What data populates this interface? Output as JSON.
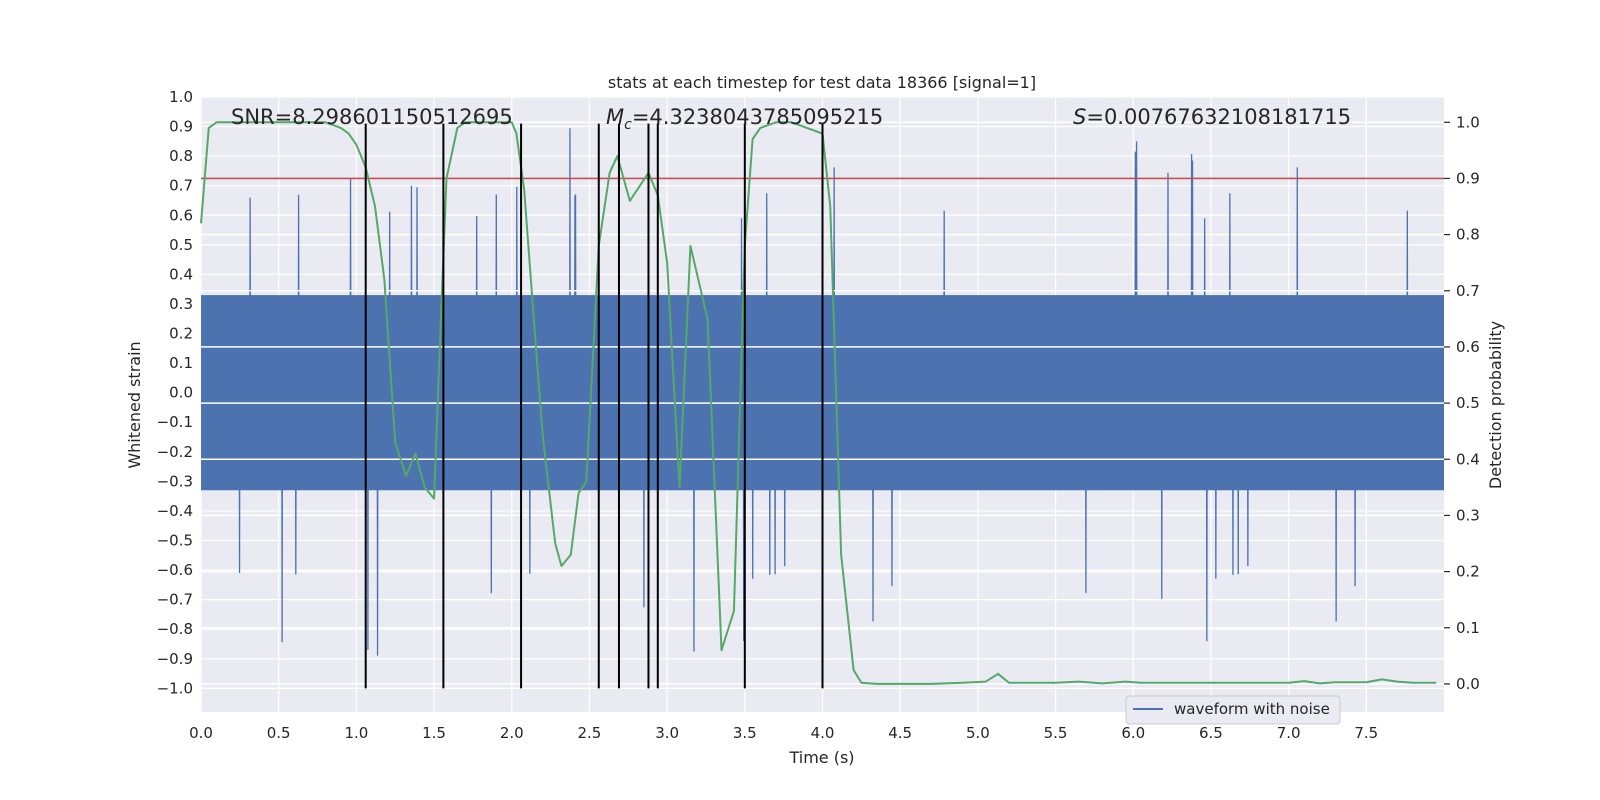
{
  "chart_data": {
    "type": "line",
    "title": "stats at each timestep for test data 18366 [signal=1]",
    "xlabel": "Time (s)",
    "ylabel_left": "Whitened strain",
    "ylabel_right": "Detection probability",
    "xlim": [
      0.0,
      8.0
    ],
    "ylim_left": [
      -1.08,
      1.0
    ],
    "ylim_right": [
      -0.05,
      1.045
    ],
    "x_ticks": [
      "0.0",
      "0.5",
      "1.0",
      "1.5",
      "2.0",
      "2.5",
      "3.0",
      "3.5",
      "4.0",
      "4.5",
      "5.0",
      "5.5",
      "6.0",
      "6.5",
      "7.0",
      "7.5"
    ],
    "y_left_ticks": [
      "1.0",
      "0.9",
      "0.8",
      "0.7",
      "0.6",
      "0.5",
      "0.4",
      "0.3",
      "0.2",
      "0.1",
      "0.0",
      "−0.1",
      "−0.2",
      "−0.3",
      "−0.4",
      "−0.5",
      "−0.6",
      "−0.7",
      "−0.8",
      "−0.9",
      "−1.0"
    ],
    "y_right_ticks": [
      "1.0",
      "0.9",
      "0.8",
      "0.7",
      "0.6",
      "0.5",
      "0.4",
      "0.3",
      "0.2",
      "0.1",
      "0.0"
    ],
    "grid": true,
    "legend_position": "bottom-right",
    "annotations": {
      "snr": "SNR=8.298601150512695",
      "mc_symbol": "M",
      "mc_sub": "c",
      "mc_value": "=4.3238043785095215",
      "s_symbol": "S",
      "s_value": "=0.00767632108181715"
    },
    "threshold": {
      "value": 0.9,
      "axis": "right",
      "color": "#c44e52"
    },
    "vertical_markers_x": [
      1.06,
      1.56,
      2.06,
      2.56,
      2.69,
      2.88,
      2.94,
      3.5,
      4.0
    ],
    "vertical_marker_range_left": [
      -1.0,
      0.91
    ],
    "series": [
      {
        "name": "waveform with noise",
        "axis": "left",
        "color": "#4c72b0",
        "style": "noise",
        "amplitude_typical": 0.33,
        "spike_max": 0.9,
        "spike_min": -1.0
      },
      {
        "axis": "right",
        "color": "#55a868",
        "x": [
          0.0,
          0.05,
          0.1,
          0.2,
          0.3,
          0.5,
          0.7,
          0.8,
          0.9,
          0.95,
          1.0,
          1.06,
          1.12,
          1.18,
          1.25,
          1.32,
          1.38,
          1.44,
          1.5,
          1.53,
          1.58,
          1.65,
          1.7,
          1.8,
          1.9,
          2.0,
          2.03,
          2.08,
          2.15,
          2.2,
          2.28,
          2.32,
          2.38,
          2.43,
          2.48,
          2.56,
          2.63,
          2.68,
          2.76,
          2.88,
          2.94,
          3.0,
          3.08,
          3.15,
          3.26,
          3.35,
          3.43,
          3.5,
          3.55,
          3.6,
          3.7,
          3.8,
          3.9,
          4.0,
          4.05,
          4.12,
          4.2,
          4.25,
          4.35,
          4.5,
          4.7,
          4.9,
          5.05,
          5.13,
          5.2,
          5.3,
          5.5,
          5.65,
          5.8,
          5.95,
          6.05,
          6.3,
          6.6,
          6.9,
          7.0,
          7.1,
          7.2,
          7.3,
          7.4,
          7.5,
          7.6,
          7.7,
          7.8,
          7.95
        ],
        "y": [
          0.82,
          0.99,
          1.0,
          1.0,
          1.0,
          1.0,
          1.0,
          1.0,
          0.99,
          0.98,
          0.96,
          0.92,
          0.85,
          0.72,
          0.43,
          0.37,
          0.41,
          0.35,
          0.33,
          0.55,
          0.9,
          0.99,
          1.0,
          1.0,
          1.0,
          1.0,
          0.98,
          0.88,
          0.62,
          0.44,
          0.25,
          0.21,
          0.23,
          0.34,
          0.36,
          0.78,
          0.91,
          0.94,
          0.86,
          0.91,
          0.87,
          0.75,
          0.35,
          0.78,
          0.65,
          0.06,
          0.13,
          0.78,
          0.97,
          0.99,
          1.0,
          1.0,
          0.99,
          0.98,
          0.85,
          0.23,
          0.025,
          0.002,
          0.0,
          0.0,
          0.0,
          0.002,
          0.004,
          0.018,
          0.002,
          0.002,
          0.002,
          0.004,
          0.001,
          0.004,
          0.002,
          0.002,
          0.002,
          0.002,
          0.002,
          0.005,
          0.001,
          0.003,
          0.003,
          0.003,
          0.008,
          0.004,
          0.002,
          0.002
        ]
      }
    ]
  }
}
